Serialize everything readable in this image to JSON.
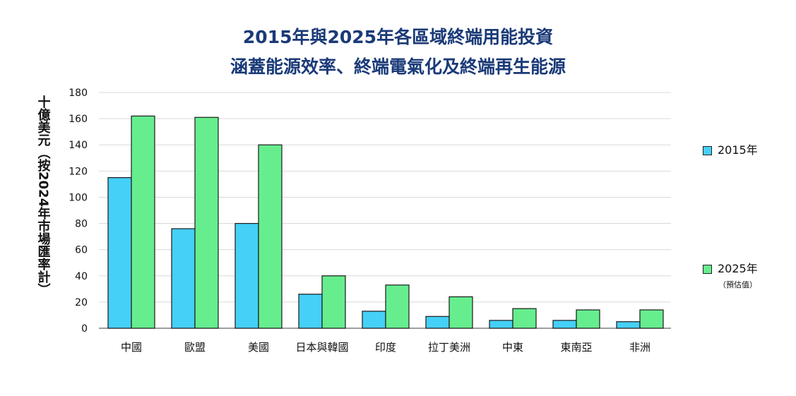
{
  "title_line1": "2015年與2025年各區域終端用能投資",
  "title_line2": "涵蓋能源效率、終端電氣化及終端再生能源",
  "colors": {
    "s2015": "#45d0f7",
    "s2025": "#66ee8e",
    "grid": "#d9d9d9",
    "title": "#1a3a78"
  },
  "legend": {
    "s2015_label": "2015年",
    "s2025_label": "2025年",
    "s2025_note": "（預估值）"
  },
  "chart_data": {
    "type": "bar",
    "title": "2015年與2025年各區域終端用能投資 涵蓋能源效率、終端電氣化及終端再生能源",
    "ylabel": "十億美元（按2024年市場匯率計）",
    "xlabel": "",
    "ylim": [
      0,
      180
    ],
    "yticks": [
      0,
      20,
      40,
      60,
      80,
      100,
      120,
      140,
      160,
      180
    ],
    "grid": true,
    "legend_position": "right",
    "categories": [
      "中國",
      "歐盟",
      "美國",
      "日本與韓國",
      "印度",
      "拉丁美洲",
      "中東",
      "東南亞",
      "非洲"
    ],
    "series": [
      {
        "name": "2015年",
        "values": [
          115,
          76,
          80,
          26,
          13,
          9,
          6,
          6,
          5
        ]
      },
      {
        "name": "2025年",
        "values": [
          162,
          161,
          140,
          40,
          33,
          24,
          15,
          14,
          14
        ]
      }
    ]
  }
}
